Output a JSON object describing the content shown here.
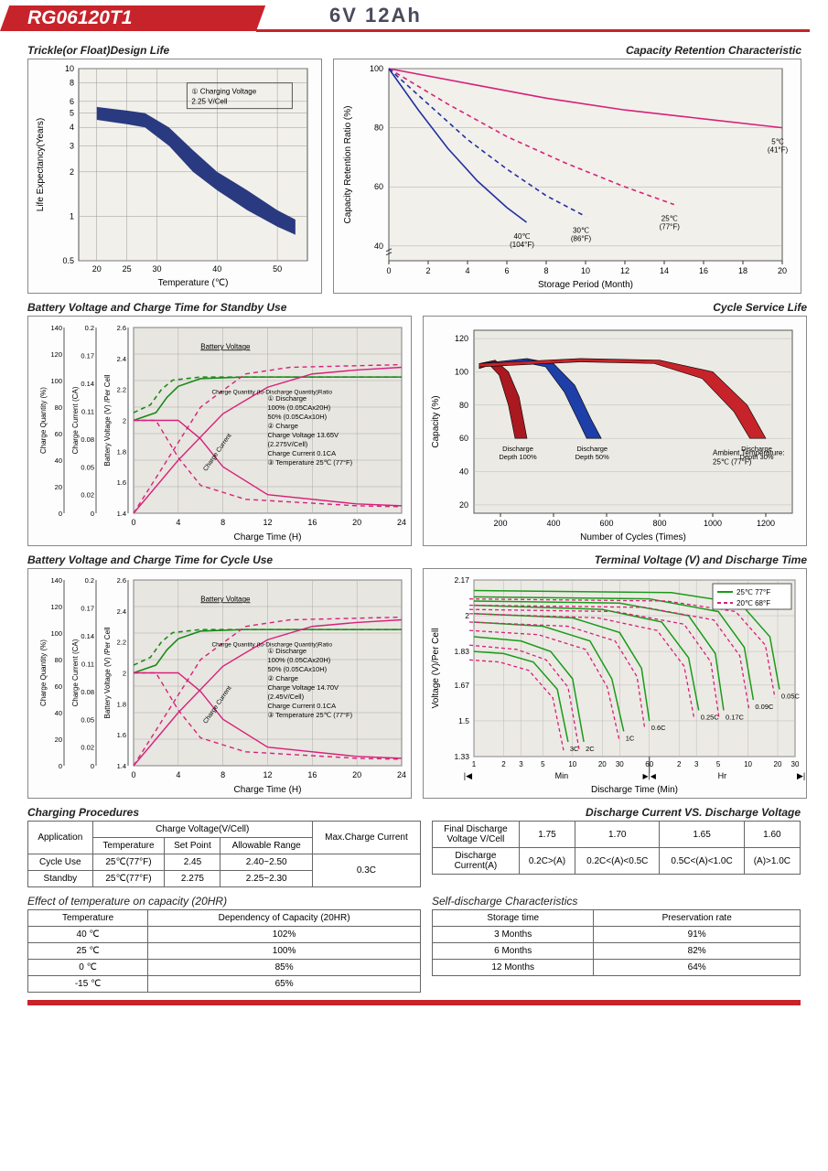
{
  "header": {
    "model": "RG06120T1",
    "spec": "6V  12Ah"
  },
  "charts": {
    "trickle": {
      "title": "Trickle(or Float)Design Life",
      "xlabel": "Temperature (℃)",
      "ylabel": "Life Expectancy(Years)",
      "xticks": [
        20,
        25,
        30,
        40,
        50
      ],
      "yticks": [
        0.5,
        1,
        2,
        3,
        4,
        5,
        6,
        8,
        10
      ],
      "xlim": [
        17,
        55
      ],
      "ylim_log": [
        0.5,
        10
      ],
      "band_upper": [
        [
          20,
          5.5
        ],
        [
          25,
          5.2
        ],
        [
          28,
          5.0
        ],
        [
          32,
          4.0
        ],
        [
          36,
          2.8
        ],
        [
          40,
          2.0
        ],
        [
          45,
          1.5
        ],
        [
          50,
          1.1
        ],
        [
          53,
          0.95
        ]
      ],
      "band_lower": [
        [
          20,
          4.5
        ],
        [
          25,
          4.2
        ],
        [
          28,
          4.0
        ],
        [
          32,
          3.0
        ],
        [
          36,
          2.0
        ],
        [
          40,
          1.5
        ],
        [
          45,
          1.1
        ],
        [
          50,
          0.85
        ],
        [
          53,
          0.75
        ]
      ],
      "band_color": "#2a3a80",
      "note": "① Charging Voltage\n   2.25 V/Cell",
      "grid_color": "#999",
      "bg": "#f2f0eb"
    },
    "retention": {
      "title": "Capacity Retention  Characteristic",
      "xlabel": "Storage Period (Month)",
      "ylabel": "Capacity Retention Ratio (%)",
      "xticks": [
        0,
        2,
        4,
        6,
        8,
        10,
        12,
        14,
        16,
        18,
        20
      ],
      "yticks": [
        40,
        60,
        80,
        100
      ],
      "xlim": [
        0,
        20
      ],
      "ylim": [
        35,
        100
      ],
      "curves": [
        {
          "label": "5℃\n(41°F)",
          "color": "#d6217b",
          "dash": false,
          "pts": [
            [
              0,
              100
            ],
            [
              4,
              95
            ],
            [
              8,
              90
            ],
            [
              12,
              86
            ],
            [
              16,
              83
            ],
            [
              20,
              80
            ]
          ]
        },
        {
          "label": "25℃\n(77°F)",
          "color": "#d6217b",
          "dash": true,
          "pts": [
            [
              0,
              100
            ],
            [
              3,
              88
            ],
            [
              6,
              77
            ],
            [
              9,
              68
            ],
            [
              12,
              60
            ],
            [
              14.5,
              54
            ]
          ]
        },
        {
          "label": "30℃\n(86°F)",
          "color": "#2030a0",
          "dash": true,
          "pts": [
            [
              0,
              100
            ],
            [
              2,
              88
            ],
            [
              4,
              76
            ],
            [
              6,
              66
            ],
            [
              8,
              57
            ],
            [
              10,
              50
            ]
          ]
        },
        {
          "label": "40℃\n(104°F)",
          "color": "#2030a0",
          "dash": false,
          "pts": [
            [
              0,
              100
            ],
            [
              1.5,
              86
            ],
            [
              3,
              73
            ],
            [
              4.5,
              62
            ],
            [
              6,
              53
            ],
            [
              7,
              48
            ]
          ]
        }
      ],
      "grid_color": "#aaa",
      "bg": "#f2f0eb"
    },
    "standby": {
      "title": "Battery Voltage and Charge Time for Standby Use",
      "xlabel": "Charge Time (H)",
      "axes_left": [
        "Charge Quantity (%)",
        "Charge Current (CA)",
        "Battery Voltage (V) /Per Cell"
      ],
      "xticks": [
        0,
        4,
        8,
        12,
        16,
        20,
        24
      ],
      "cq_ticks": [
        0,
        20,
        40,
        60,
        80,
        100,
        120,
        140
      ],
      "cc_ticks": [
        0,
        0.02,
        0.05,
        0.08,
        0.11,
        0.14,
        0.17,
        0.2
      ],
      "bv_ticks": [
        1.4,
        1.6,
        1.8,
        2.0,
        2.2,
        2.4,
        2.6
      ],
      "voltage_100": {
        "color": "#1a8a1a",
        "dash": false,
        "pts": [
          [
            0,
            2.0
          ],
          [
            2,
            2.05
          ],
          [
            3,
            2.15
          ],
          [
            4,
            2.22
          ],
          [
            6,
            2.27
          ],
          [
            10,
            2.28
          ],
          [
            24,
            2.28
          ]
        ]
      },
      "voltage_50": {
        "color": "#1a8a1a",
        "dash": true,
        "pts": [
          [
            0,
            2.05
          ],
          [
            1.5,
            2.1
          ],
          [
            2.5,
            2.2
          ],
          [
            3.5,
            2.26
          ],
          [
            6,
            2.28
          ],
          [
            24,
            2.28
          ]
        ]
      },
      "quantity_100": {
        "color": "#d6217b",
        "dash": false,
        "pts": [
          [
            0,
            0
          ],
          [
            4,
            40
          ],
          [
            8,
            75
          ],
          [
            12,
            95
          ],
          [
            16,
            105
          ],
          [
            20,
            108
          ],
          [
            24,
            110
          ]
        ]
      },
      "quantity_50": {
        "color": "#d6217b",
        "dash": true,
        "pts": [
          [
            0,
            0
          ],
          [
            3,
            40
          ],
          [
            6,
            80
          ],
          [
            10,
            105
          ],
          [
            14,
            110
          ],
          [
            24,
            112
          ]
        ]
      },
      "current_100": {
        "color": "#d6217b",
        "dash": false,
        "pts": [
          [
            0,
            0.1
          ],
          [
            4,
            0.1
          ],
          [
            6,
            0.08
          ],
          [
            8,
            0.05
          ],
          [
            12,
            0.02
          ],
          [
            20,
            0.01
          ],
          [
            24,
            0.008
          ]
        ]
      },
      "current_50": {
        "color": "#d6217b",
        "dash": true,
        "pts": [
          [
            0,
            0.1
          ],
          [
            2,
            0.1
          ],
          [
            4,
            0.06
          ],
          [
            6,
            0.03
          ],
          [
            10,
            0.015
          ],
          [
            20,
            0.008
          ],
          [
            24,
            0.007
          ]
        ]
      },
      "note_lines": [
        "① Discharge",
        "   100% (0.05CAx20H)",
        "   50% (0.05CAx10H)",
        "② Charge",
        "   Charge Voltage 13.65V",
        "   (2.275V/Cell)",
        "   Charge Current 0.1CA",
        "③ Temperature 25℃ (77°F)"
      ],
      "label_bv": "Battery Voltage",
      "label_cq": "Charge Quantity (to-Discharge Quantity)Ratio",
      "label_cc": "Charge Current",
      "bg": "#e8e6e0"
    },
    "cyclelife": {
      "title": "Cycle Service Life",
      "xlabel": "Number of Cycles (Times)",
      "ylabel": "Capacity (%)",
      "xticks": [
        200,
        400,
        600,
        800,
        1000,
        1200
      ],
      "yticks": [
        20,
        40,
        60,
        80,
        100,
        120
      ],
      "xlim": [
        100,
        1300
      ],
      "ylim": [
        15,
        125
      ],
      "wedges": [
        {
          "label": "Discharge\nDepth 100%",
          "color": "#aa1820",
          "outer": [
            [
              120,
              105
            ],
            [
              180,
              107
            ],
            [
              230,
              100
            ],
            [
              270,
              85
            ],
            [
              300,
              60
            ]
          ],
          "inner": [
            [
              120,
              102
            ],
            [
              160,
              104
            ],
            [
              195,
              98
            ],
            [
              230,
              80
            ],
            [
              255,
              60
            ]
          ]
        },
        {
          "label": "Discharge\nDepth 50%",
          "color": "#1e3ea8",
          "outer": [
            [
              120,
              105
            ],
            [
              300,
              108
            ],
            [
              400,
              105
            ],
            [
              480,
              92
            ],
            [
              540,
              72
            ],
            [
              580,
              60
            ]
          ],
          "inner": [
            [
              120,
              103
            ],
            [
              280,
              106
            ],
            [
              370,
              103
            ],
            [
              440,
              88
            ],
            [
              495,
              70
            ],
            [
              525,
              60
            ]
          ]
        },
        {
          "label": "Discharge\nDepth 30%",
          "color": "#c7232a",
          "outer": [
            [
              120,
              105
            ],
            [
              500,
              108
            ],
            [
              800,
              107
            ],
            [
              1000,
              100
            ],
            [
              1130,
              80
            ],
            [
              1200,
              60
            ]
          ],
          "inner": [
            [
              120,
              103
            ],
            [
              500,
              106
            ],
            [
              780,
              105
            ],
            [
              960,
              96
            ],
            [
              1080,
              76
            ],
            [
              1140,
              60
            ]
          ]
        }
      ],
      "ambient": "Ambient Temperature:\n25℃  (77°F)",
      "bg": "#eceae4"
    },
    "cycle": {
      "title": "Battery Voltage and Charge Time for Cycle Use",
      "note_lines": [
        "① Discharge",
        "   100% (0.05CAx20H)",
        "   50% (0.05CAx10H)",
        "② Charge",
        "   Charge Voltage 14.70V",
        "   (2.45V/Cell)",
        "   Charge Current 0.1CA",
        "③ Temperature 25℃ (77°F)"
      ]
    },
    "terminal": {
      "title": "Terminal Voltage (V) and Discharge Time",
      "ylabel": "Voltage (V)/Per Cell",
      "xlabel": "Discharge Time (Min)",
      "yticks": [
        1.33,
        1.5,
        1.67,
        1.83,
        2.0,
        2.17
      ],
      "xticks_min": [
        1,
        2,
        3,
        5,
        10,
        20,
        30,
        60
      ],
      "xticks_hr": [
        2,
        3,
        5,
        10,
        20,
        30
      ],
      "legend": [
        {
          "label": "25℃ 77°F",
          "color": "#1a9a1a",
          "dash": false
        },
        {
          "label": "20℃ 68°F",
          "color": "#d6217b",
          "dash": true
        }
      ],
      "rates": [
        "3C",
        "2C",
        "1C",
        "0.6C",
        "0.25C",
        "0.17C",
        "0.09C",
        "0.05C"
      ],
      "curves_25": [
        [
          [
            1,
            1.83
          ],
          [
            2,
            1.82
          ],
          [
            4,
            1.78
          ],
          [
            7,
            1.65
          ],
          [
            9,
            1.4
          ]
        ],
        [
          [
            1,
            1.9
          ],
          [
            3,
            1.88
          ],
          [
            6,
            1.83
          ],
          [
            10,
            1.7
          ],
          [
            13,
            1.4
          ]
        ],
        [
          [
            1,
            1.97
          ],
          [
            5,
            1.95
          ],
          [
            15,
            1.88
          ],
          [
            25,
            1.7
          ],
          [
            33,
            1.45
          ]
        ],
        [
          [
            1,
            2.01
          ],
          [
            10,
            1.99
          ],
          [
            30,
            1.92
          ],
          [
            50,
            1.75
          ],
          [
            60,
            1.5
          ]
        ],
        [
          [
            1,
            2.05
          ],
          [
            20,
            2.03
          ],
          [
            80,
            1.97
          ],
          [
            150,
            1.8
          ],
          [
            190,
            1.55
          ]
        ],
        [
          [
            1,
            2.07
          ],
          [
            30,
            2.06
          ],
          [
            150,
            2.0
          ],
          [
            280,
            1.82
          ],
          [
            340,
            1.55
          ]
        ],
        [
          [
            1,
            2.09
          ],
          [
            60,
            2.08
          ],
          [
            300,
            2.02
          ],
          [
            550,
            1.85
          ],
          [
            680,
            1.6
          ]
        ],
        [
          [
            1,
            2.12
          ],
          [
            100,
            2.11
          ],
          [
            500,
            2.06
          ],
          [
            1000,
            1.9
          ],
          [
            1250,
            1.65
          ]
        ]
      ],
      "bg": "#eceae4"
    }
  },
  "tables": {
    "charging": {
      "title": "Charging Procedures",
      "headers": {
        "app": "Application",
        "cv": "Charge Voltage(V/Cell)",
        "temp": "Temperature",
        "sp": "Set Point",
        "ar": "Allowable Range",
        "max": "Max.Charge Current"
      },
      "rows": [
        {
          "app": "Cycle Use",
          "temp": "25℃(77°F)",
          "sp": "2.45",
          "ar": "2.40~2.50"
        },
        {
          "app": "Standby",
          "temp": "25℃(77°F)",
          "sp": "2.275",
          "ar": "2.25~2.30"
        }
      ],
      "max": "0.3C"
    },
    "discharge_v": {
      "title": "Discharge Current VS. Discharge Voltage",
      "row1_h": "Final Discharge\nVoltage V/Cell",
      "row1": [
        "1.75",
        "1.70",
        "1.65",
        "1.60"
      ],
      "row2_h": "Discharge\nCurrent(A)",
      "row2": [
        "0.2C>(A)",
        "0.2C<(A)<0.5C",
        "0.5C<(A)<1.0C",
        "(A)>1.0C"
      ]
    },
    "temp_cap": {
      "title": "Effect of temperature on capacity (20HR)",
      "headers": [
        "Temperature",
        "Dependency of Capacity (20HR)"
      ],
      "rows": [
        [
          "40 ℃",
          "102%"
        ],
        [
          "25 ℃",
          "100%"
        ],
        [
          "0 ℃",
          "85%"
        ],
        [
          "-15 ℃",
          "65%"
        ]
      ]
    },
    "selfdis": {
      "title": "Self-discharge Characteristics",
      "headers": [
        "Storage time",
        "Preservation rate"
      ],
      "rows": [
        [
          "3 Months",
          "91%"
        ],
        [
          "6 Months",
          "82%"
        ],
        [
          "12 Months",
          "64%"
        ]
      ]
    }
  }
}
